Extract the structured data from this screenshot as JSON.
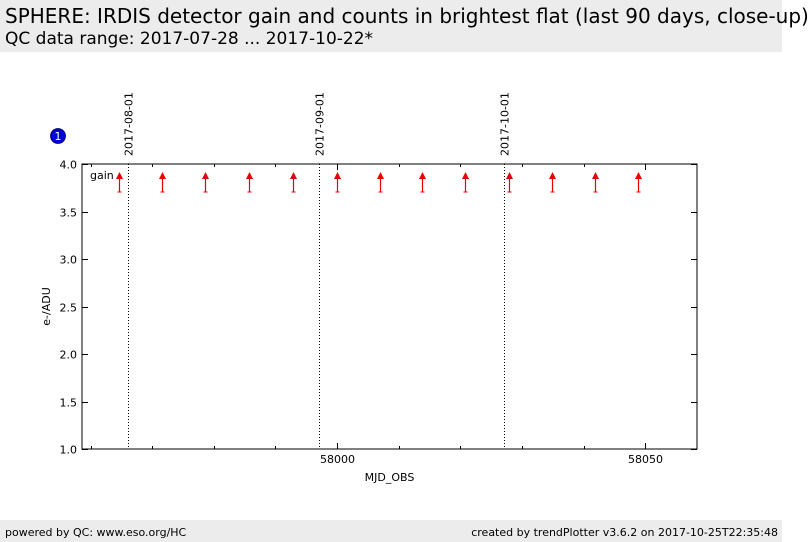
{
  "header": {
    "title": "SPHERE: IRDIS detector gain and counts in brightest flat (last 90 days, close-up)",
    "subtitle": "QC data range: 2017-07-28 ... 2017-10-22*"
  },
  "footer": {
    "left": "powered by QC: www.eso.org/HC",
    "right": "created by trendPlotter v3.6.2 on 2017-10-25T22:35:48"
  },
  "colors": {
    "marker": "#e80000",
    "badge": "#0000dd",
    "header_bg": "#ececec"
  },
  "chart_data": {
    "type": "scatter",
    "panel_badge": "1",
    "xlabel": "MJD_OBS",
    "ylabel": "e-/ADU",
    "xlim": [
      57958.6,
      58058.4
    ],
    "ylim": [
      1.0,
      4.0
    ],
    "x_ticks": [
      58000,
      58050
    ],
    "x_minor_ticks": [
      57960,
      57970,
      57980,
      57990,
      58010,
      58020,
      58030,
      58040,
      58050,
      58060
    ],
    "y_ticks": [
      1.0,
      1.5,
      2.0,
      2.5,
      3.0,
      3.5,
      4.0
    ],
    "y_tick_labels": [
      "1.0",
      "1.5",
      "2.0",
      "2.5",
      "3.0",
      "3.5",
      "4.0"
    ],
    "legend": {
      "label": "gain",
      "placement": "top-left"
    },
    "date_markers": [
      {
        "label": "2017-08-01",
        "mjd": 57966
      },
      {
        "label": "2017-09-01",
        "mjd": 57997
      },
      {
        "label": "2017-10-01",
        "mjd": 58027
      }
    ],
    "series": [
      {
        "marker": "up-arrow",
        "note": "values above plot range",
        "x": [
          57964.6,
          57971.6,
          57978.6,
          57985.7,
          57992.8,
          57999.9,
          58006.9,
          58013.7,
          58020.8,
          58027.9,
          58034.9,
          58041.8,
          58048.9
        ]
      }
    ]
  }
}
